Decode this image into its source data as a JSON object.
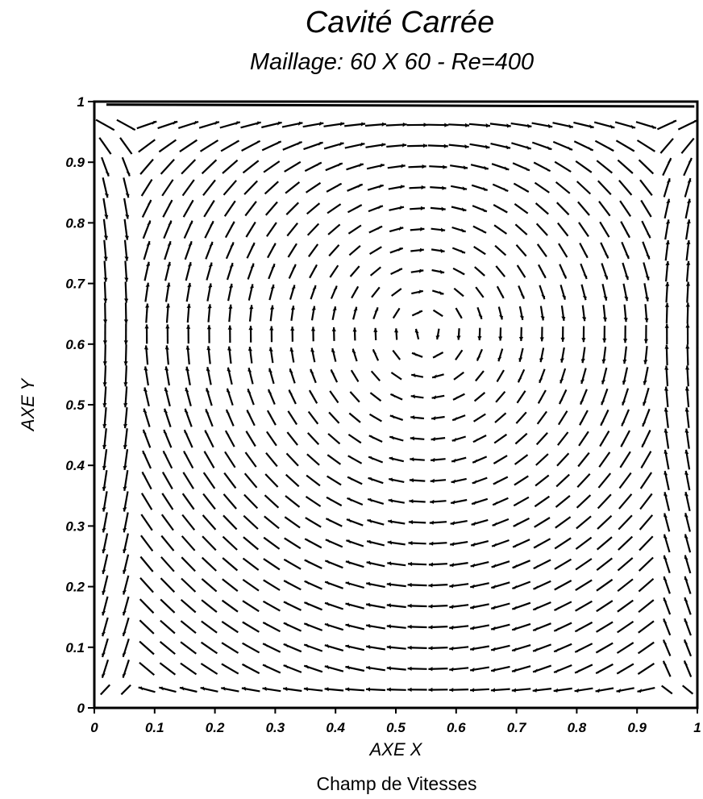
{
  "chart_data": {
    "type": "vector_field",
    "title": "Cavité Carrée",
    "subtitle": "Maillage: 60 X 60 - Re=400",
    "xlabel": "AXE X",
    "ylabel": "AXE Y",
    "caption": "Champ de Vitesses",
    "xlim": [
      0,
      1
    ],
    "ylim": [
      0,
      1
    ],
    "x_ticks": [
      "0",
      "0.1",
      "0.2",
      "0.3",
      "0.4",
      "0.5",
      "0.6",
      "0.7",
      "0.8",
      "0.9",
      "1"
    ],
    "y_ticks": [
      "0",
      "0.1",
      "0.2",
      "0.3",
      "0.4",
      "0.5",
      "0.6",
      "0.7",
      "0.8",
      "0.9",
      "1"
    ],
    "grid": false,
    "legend": "none",
    "lid_velocity": {
      "u": 1,
      "v": 0,
      "y": 1
    },
    "vortex_center": {
      "x": 0.55,
      "y": 0.62
    },
    "sample_spacing": 0.0345,
    "arrow_color": "#000000"
  }
}
